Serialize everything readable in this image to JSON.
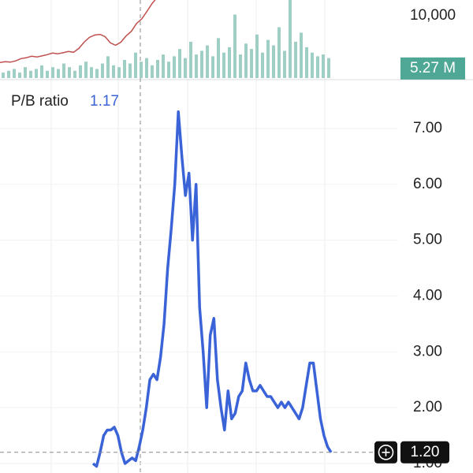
{
  "chart_data": [
    {
      "type": "line",
      "values": [
        7000,
        7050,
        7020,
        7100,
        7250,
        7300,
        7400,
        7350,
        7420,
        7500,
        7600,
        7550,
        7620,
        7700,
        7650,
        7900,
        8300,
        8600,
        8750,
        8800,
        8650,
        8250,
        8100,
        8300,
        8700,
        9000,
        9500,
        9800,
        10300,
        10800,
        11200
      ],
      "color": "#c0504d",
      "ylim": [
        6000,
        11000
      ],
      "yticks": [
        {
          "value": 10000,
          "label": "10,000"
        }
      ],
      "volume": {
        "type": "bar",
        "values": [
          3,
          4,
          5,
          3,
          6,
          4,
          5,
          7,
          4,
          6,
          5,
          8,
          6,
          4,
          7,
          9,
          6,
          5,
          8,
          12,
          7,
          6,
          10,
          8,
          14,
          9,
          11,
          7,
          10,
          13,
          9,
          12,
          16,
          11,
          20,
          13,
          15,
          18,
          12,
          22,
          14,
          17,
          35,
          13,
          19,
          16,
          24,
          14,
          21,
          18,
          28,
          15,
          43,
          20,
          25,
          17,
          14,
          12,
          13,
          11
        ],
        "color": "#9fcfc4",
        "last_value": {
          "value": 5.27,
          "label": "5.27 M"
        },
        "ylim": [
          0,
          43
        ]
      }
    },
    {
      "type": "line",
      "title": "P/B ratio",
      "legend_value": 1.17,
      "color": "#3b63d8",
      "values": [
        1.0,
        0.95,
        1.2,
        1.5,
        1.6,
        1.6,
        1.65,
        1.5,
        1.2,
        1.0,
        1.05,
        1.1,
        1.05,
        1.3,
        1.6,
        2.0,
        2.5,
        2.6,
        2.5,
        2.9,
        3.5,
        4.5,
        5.2,
        6.0,
        7.3,
        6.5,
        5.8,
        6.2,
        5.0,
        6.0,
        3.8,
        3.0,
        2.0,
        3.3,
        3.6,
        2.5,
        2.0,
        1.6,
        2.3,
        1.8,
        1.9,
        2.2,
        2.3,
        2.8,
        2.5,
        2.3,
        2.3,
        2.4,
        2.3,
        2.2,
        2.2,
        2.1,
        2.0,
        2.1,
        2.0,
        2.1,
        2.0,
        1.9,
        1.8,
        2.0,
        2.4,
        2.8,
        2.8,
        2.3,
        1.8,
        1.5,
        1.3,
        1.2
      ],
      "ylim": [
        0.83,
        7.82
      ],
      "yticks": [
        {
          "value": 1,
          "label": "1.00"
        },
        {
          "value": 2,
          "label": "2.00"
        },
        {
          "value": 3,
          "label": "3.00"
        },
        {
          "value": 4,
          "label": "4.00"
        },
        {
          "value": 5,
          "label": "5.00"
        },
        {
          "value": 6,
          "label": "6.00"
        },
        {
          "value": 7,
          "label": "7.00"
        }
      ],
      "crosshair": {
        "value": 1.2,
        "label": "1.20"
      }
    }
  ]
}
